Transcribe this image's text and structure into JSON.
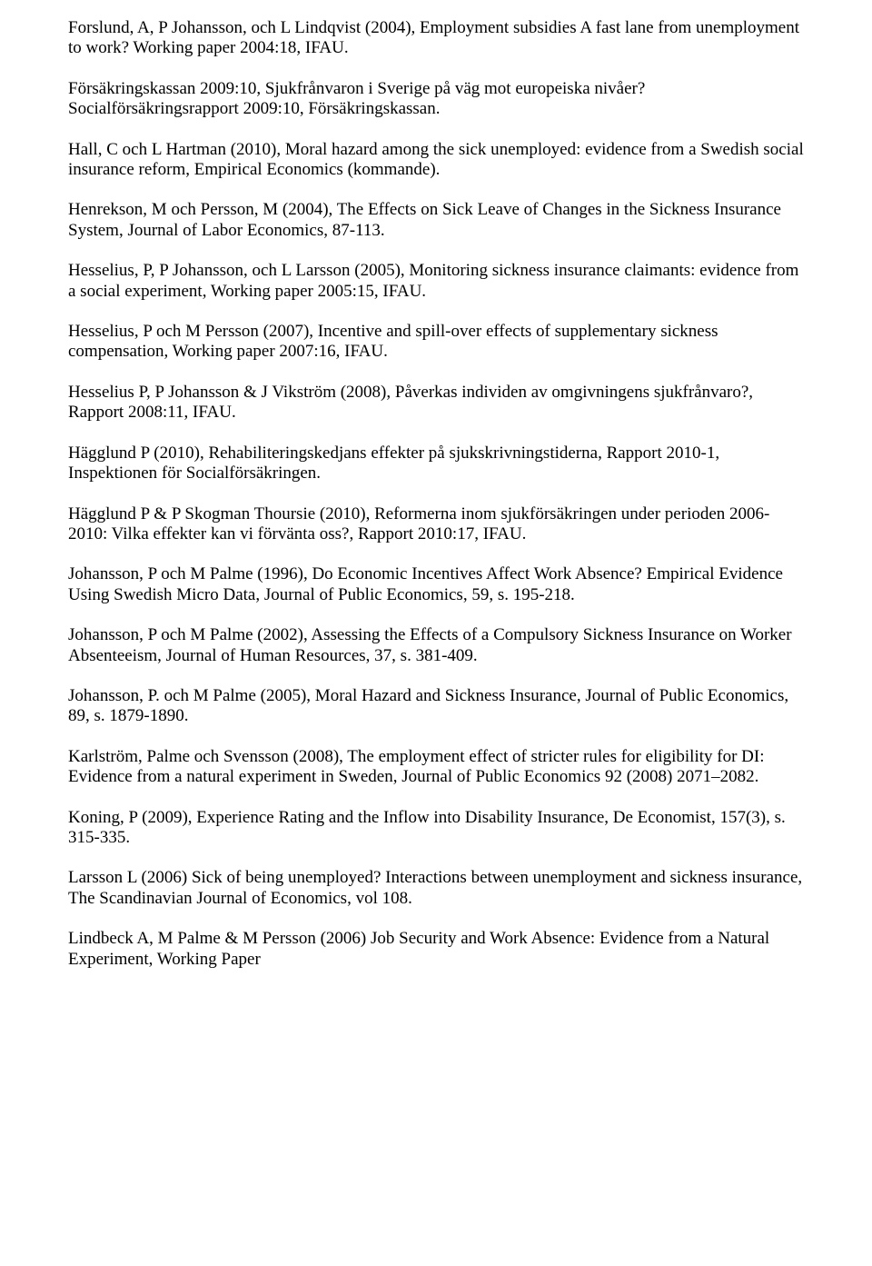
{
  "page": {
    "background_color": "#ffffff",
    "text_color": "#000000",
    "font_family": "Times New Roman",
    "font_size_pt": 14
  },
  "references": [
    "Forslund, A, P Johansson, och L Lindqvist (2004), Employment subsidies A fast lane from unemployment to work? Working paper 2004:18, IFAU.",
    "Försäkringskassan 2009:10, Sjukfrånvaron i Sverige på väg mot europeiska nivåer? Socialförsäkringsrapport 2009:10, Försäkringskassan.",
    "Hall, C och L Hartman (2010), Moral hazard among the sick unemployed: evidence from a Swedish social insurance reform, Empirical Economics (kommande).",
    "Henrekson, M och Persson, M (2004), The Effects on Sick Leave of Changes in the Sickness Insurance System, Journal of Labor Economics, 87-113.",
    "Hesselius, P, P Johansson, och L Larsson (2005), Monitoring sickness insurance claimants: evidence from a social experiment, Working paper 2005:15, IFAU.",
    "Hesselius, P och M Persson (2007), Incentive and spill-over effects of supplementary sickness compensation, Working paper 2007:16, IFAU.",
    "Hesselius P, P Johansson & J Vikström (2008), Påverkas individen av omgivningens sjukfrånvaro?, Rapport 2008:11, IFAU.",
    "Hägglund P (2010), Rehabiliteringskedjans effekter på sjukskrivningstiderna, Rapport 2010-1, Inspektionen för Socialförsäkringen.",
    "Hägglund P & P Skogman Thoursie (2010), Reformerna inom sjukförsäkringen under perioden 2006-2010: Vilka effekter kan vi förvänta oss?, Rapport 2010:17, IFAU.",
    "Johansson, P och M Palme (1996), Do Economic Incentives Affect Work Absence? Empirical Evidence Using Swedish Micro Data, Journal of Public Economics, 59, s. 195-218.",
    "Johansson, P och M Palme (2002), Assessing the Effects of a Compulsory Sickness Insurance on Worker Absenteeism, Journal of Human Resources, 37, s. 381-409.",
    "Johansson, P. och M Palme (2005), Moral Hazard and Sickness Insurance, Journal of Public Economics, 89, s. 1879-1890.",
    "Karlström, Palme och Svensson (2008), The employment effect of stricter rules for eligibility for DI: Evidence from a\nnatural experiment in Sweden, Journal of Public Economics 92 (2008) 2071–2082.",
    "Koning, P (2009), Experience Rating and the Inflow into Disability Insurance, De Economist, 157(3), s. 315-335.",
    "Larsson L (2006) Sick of being unemployed? Interactions between unemployment and sickness insurance, The Scandinavian Journal of Economics, vol 108.",
    "Lindbeck A, M Palme & M Persson (2006) Job Security and Work Absence: Evidence from a Natural Experiment, Working Paper"
  ]
}
